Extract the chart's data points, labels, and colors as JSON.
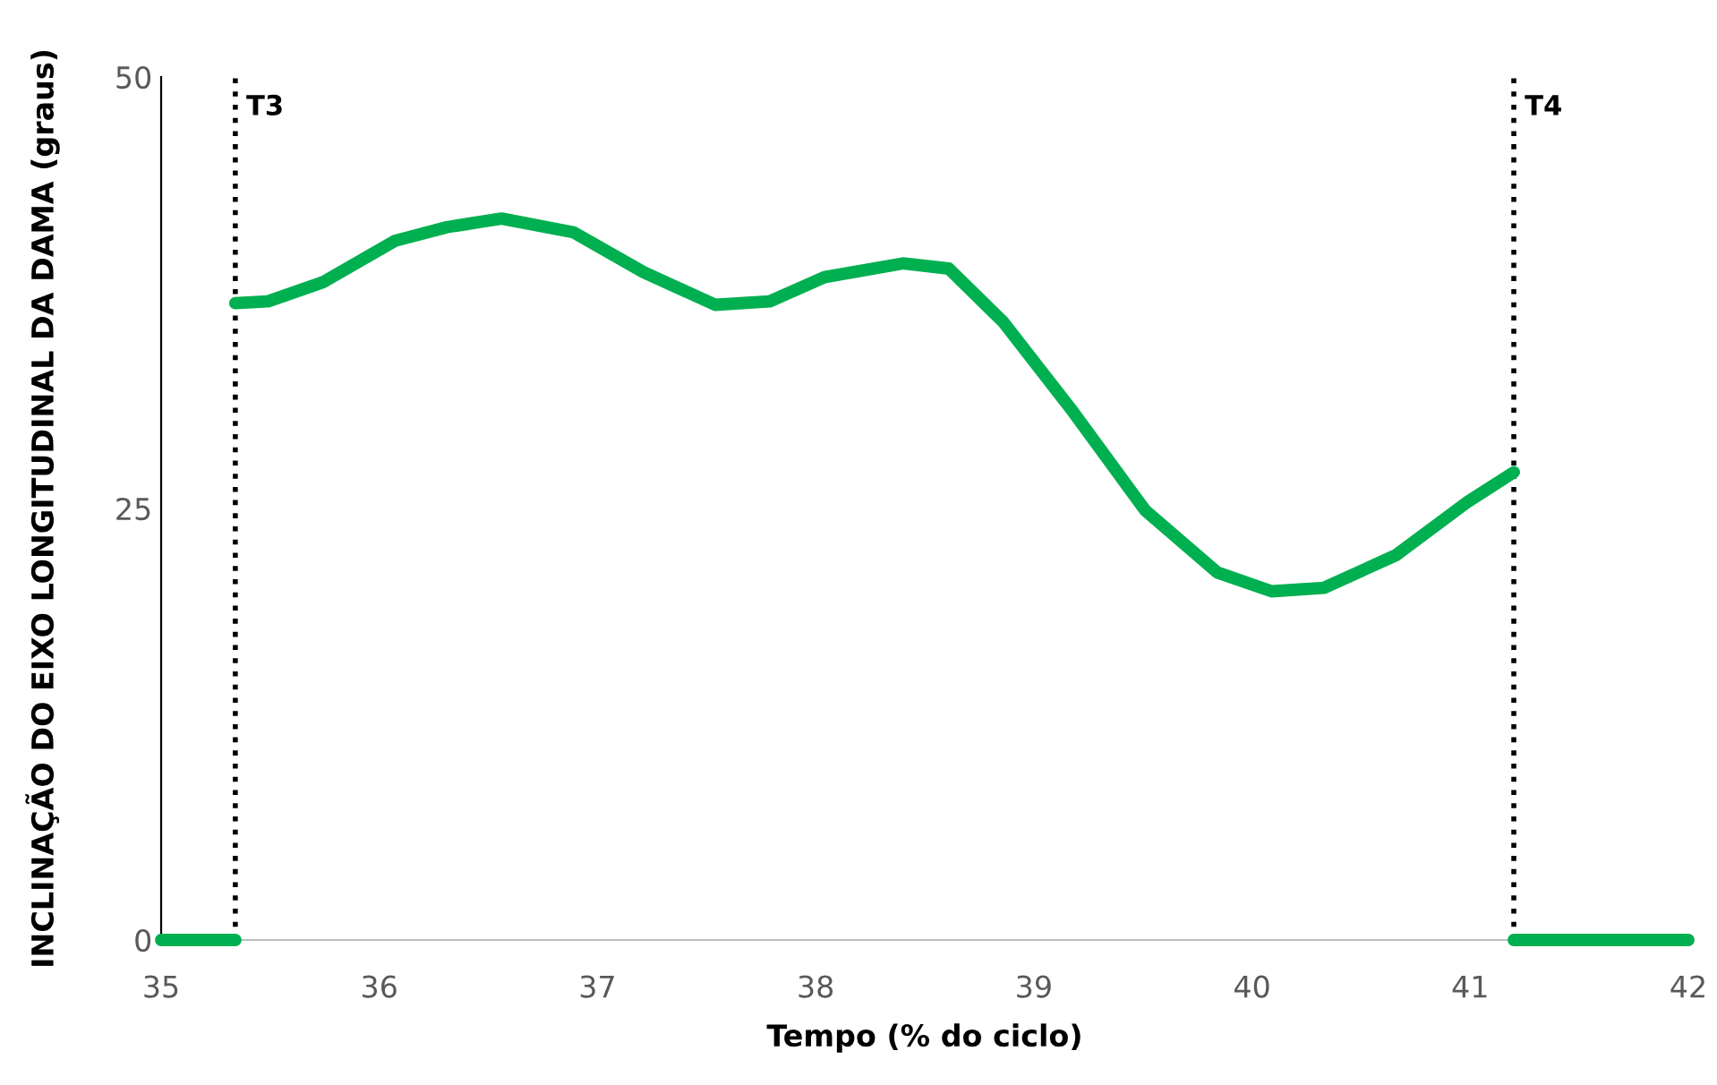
{
  "chart_data": {
    "type": "line",
    "xlabel": "Tempo (% do ciclo)",
    "ylabel": "INCLINAÇÃO DO EIXO LONGITUDINAL DA DAMA (graus)",
    "xlim": [
      35,
      42
    ],
    "xticks": [
      35,
      36,
      37,
      38,
      39,
      40,
      41,
      42
    ],
    "ylim": [
      0,
      50
    ],
    "yticks": [
      0,
      25,
      50
    ],
    "grid": false,
    "legend": false,
    "marker": "none",
    "line_style": "solid",
    "series": [
      {
        "color": "#00b050",
        "x": [
          35,
          35.34
        ],
        "values": [
          0,
          0
        ]
      },
      {
        "color": "#00b050",
        "x": [
          35.34,
          35.49,
          35.74,
          36.07,
          36.31,
          36.56,
          36.89,
          37.21,
          37.54,
          37.79,
          38.04,
          38.4,
          38.61,
          38.86,
          39.18,
          39.51,
          39.84,
          40.09,
          40.33,
          40.66,
          40.99,
          41.2
        ],
        "values": [
          36.9,
          37.0,
          38.1,
          40.5,
          41.3,
          41.8,
          41.0,
          38.7,
          36.8,
          37.0,
          38.4,
          39.2,
          38.9,
          35.8,
          30.6,
          24.9,
          21.3,
          20.2,
          20.4,
          22.3,
          25.4,
          27.1
        ]
      },
      {
        "color": "#00b050",
        "x": [
          41.2,
          42
        ],
        "values": [
          0,
          0
        ]
      }
    ],
    "ref_lines": [
      {
        "axis": "x",
        "value": 35.34,
        "label": "T3",
        "color": "#000000",
        "line_style": "dotted"
      },
      {
        "axis": "x",
        "value": 41.2,
        "label": "T4",
        "color": "#000000",
        "line_style": "dotted"
      }
    ]
  }
}
